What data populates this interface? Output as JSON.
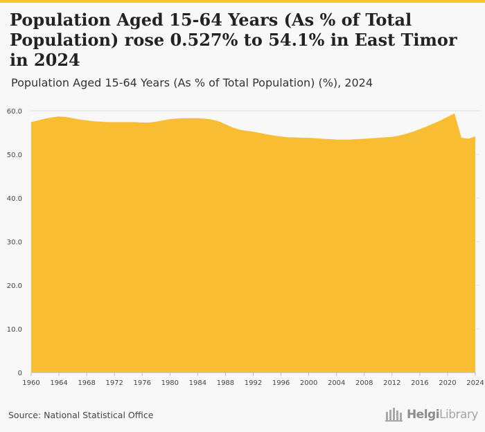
{
  "title": "Population Aged 15-64 Years (As % of Total Population) rose 0.527% to 54.1% in East Timor in 2024",
  "subtitle": "Population Aged 15-64 Years (As % of Total Population) (%), 2024",
  "source": "Source: National Statistical Office",
  "logo": {
    "bold": "Helgi",
    "rest": "Library",
    "icon": "library-building-icon"
  },
  "colors": {
    "fill": "#f9bd33",
    "accent": "#f7c22e",
    "grid": "#e2e2e2",
    "axis_text": "#444444"
  },
  "chart_data": {
    "type": "area",
    "title": "Population Aged 15-64 Years (As % of Total Population) (%), 2024",
    "xlabel": "",
    "ylabel": "",
    "x": [
      1960,
      1961,
      1962,
      1963,
      1964,
      1965,
      1966,
      1967,
      1968,
      1969,
      1970,
      1971,
      1972,
      1973,
      1974,
      1975,
      1976,
      1977,
      1978,
      1979,
      1980,
      1981,
      1982,
      1983,
      1984,
      1985,
      1986,
      1987,
      1988,
      1989,
      1990,
      1991,
      1992,
      1993,
      1994,
      1995,
      1996,
      1997,
      1998,
      1999,
      2000,
      2001,
      2002,
      2003,
      2004,
      2005,
      2006,
      2007,
      2008,
      2009,
      2010,
      2011,
      2012,
      2013,
      2014,
      2015,
      2016,
      2017,
      2018,
      2019,
      2020,
      2021,
      2022,
      2023,
      2024
    ],
    "series": [
      {
        "name": "",
        "values": [
          57.4,
          57.8,
          58.2,
          58.5,
          58.7,
          58.6,
          58.3,
          58.0,
          57.8,
          57.6,
          57.5,
          57.4,
          57.4,
          57.4,
          57.4,
          57.4,
          57.3,
          57.3,
          57.5,
          57.8,
          58.1,
          58.2,
          58.3,
          58.3,
          58.3,
          58.2,
          58.0,
          57.6,
          56.9,
          56.2,
          55.7,
          55.4,
          55.2,
          54.9,
          54.6,
          54.3,
          54.1,
          53.9,
          53.9,
          53.8,
          53.8,
          53.7,
          53.6,
          53.5,
          53.4,
          53.4,
          53.4,
          53.5,
          53.6,
          53.7,
          53.8,
          53.9,
          54.0,
          54.3,
          54.7,
          55.2,
          55.8,
          56.4,
          57.1,
          57.8,
          58.6,
          59.4,
          53.8,
          53.6,
          54.1
        ]
      }
    ],
    "x_ticks": [
      "1960",
      "1964",
      "1968",
      "1972",
      "1976",
      "1980",
      "1984",
      "1988",
      "1992",
      "1996",
      "2000",
      "2004",
      "2008",
      "2012",
      "2016",
      "2020",
      "2024"
    ],
    "y_ticks": [
      "0",
      "10.0",
      "20.0",
      "30.0",
      "40.0",
      "50.0",
      "60.0"
    ],
    "xlim": [
      1960,
      2024
    ],
    "ylim": [
      0,
      60
    ],
    "grid": true,
    "legend": "none"
  }
}
